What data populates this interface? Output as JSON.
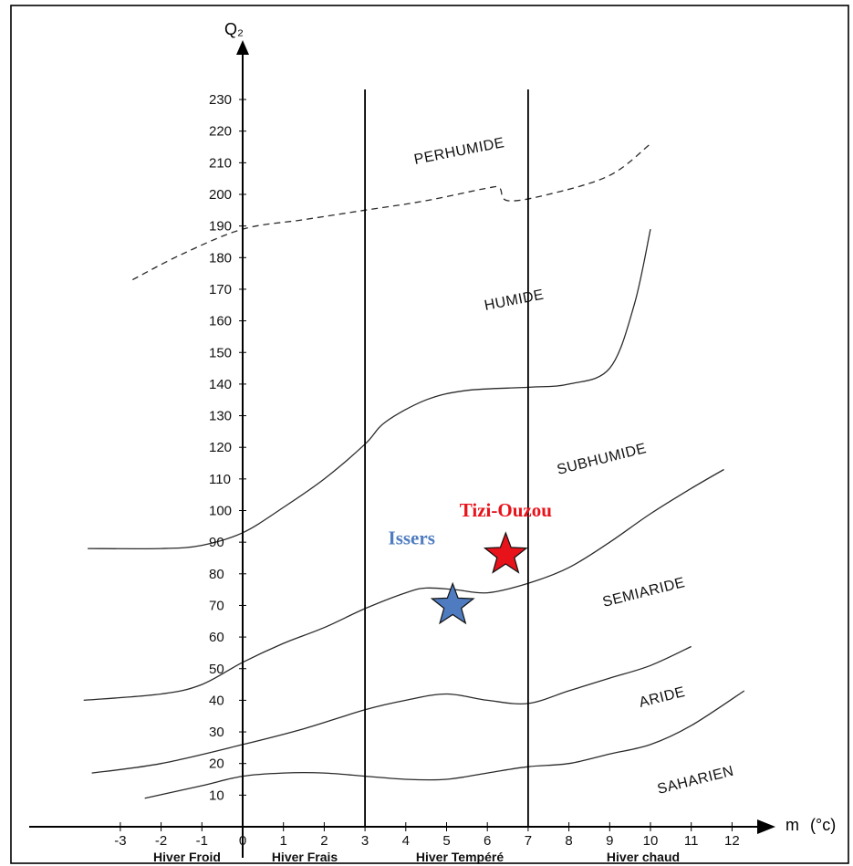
{
  "chart_data": {
    "type": "line",
    "title": "",
    "ylabel": "Q₂",
    "xlabel": "m",
    "xunit": "(°c)",
    "xlim": [
      -3.5,
      12.5
    ],
    "ylim": [
      0,
      240
    ],
    "yticks": [
      10,
      20,
      30,
      40,
      50,
      60,
      70,
      80,
      90,
      100,
      110,
      120,
      130,
      140,
      150,
      160,
      170,
      180,
      190,
      200,
      210,
      220,
      230
    ],
    "xticks": [
      -3,
      -2,
      -1,
      0,
      1,
      2,
      3,
      4,
      5,
      6,
      7,
      8,
      9,
      10,
      11,
      12
    ],
    "vertical_lines": [
      0,
      3,
      7
    ],
    "winter_labels": [
      "Hiver Froid",
      "Hiver Frais",
      "Hiver Tempéré",
      "Hiver chaud"
    ],
    "zone_labels": [
      "PERHUMIDE",
      "HUMIDE",
      "SUBHUMIDE",
      "SEMIARIDE",
      "ARIDE",
      "SAHARIEN"
    ],
    "series": [
      {
        "style": "dashed",
        "points": [
          [
            -2.7,
            173
          ],
          [
            -1.5,
            181
          ],
          [
            0,
            189
          ],
          [
            1.5,
            192
          ],
          [
            3,
            195
          ],
          [
            4.5,
            198
          ],
          [
            6,
            202
          ],
          [
            6.3,
            202
          ],
          [
            6.5,
            198
          ],
          [
            7.5,
            200
          ],
          [
            9,
            206
          ],
          [
            10,
            216
          ]
        ]
      },
      {
        "style": "solid",
        "points": [
          [
            -3.8,
            88
          ],
          [
            -2,
            88
          ],
          [
            -1,
            89
          ],
          [
            0,
            93
          ],
          [
            1,
            101
          ],
          [
            2,
            110
          ],
          [
            3,
            121
          ],
          [
            3.5,
            128
          ],
          [
            4.5,
            135
          ],
          [
            5.5,
            138
          ],
          [
            7,
            139
          ],
          [
            8,
            140
          ],
          [
            9,
            145
          ],
          [
            9.6,
            165
          ],
          [
            10,
            189
          ]
        ]
      },
      {
        "style": "solid",
        "points": [
          [
            -3.9,
            40
          ],
          [
            -2,
            42
          ],
          [
            -1,
            45
          ],
          [
            0,
            52
          ],
          [
            1,
            58
          ],
          [
            2,
            63
          ],
          [
            3,
            69
          ],
          [
            4,
            74
          ],
          [
            4.5,
            75.5
          ],
          [
            5.2,
            75
          ],
          [
            6,
            74
          ],
          [
            7,
            77
          ],
          [
            8,
            82
          ],
          [
            9,
            90
          ],
          [
            10,
            99
          ],
          [
            11,
            107
          ],
          [
            11.8,
            113
          ]
        ]
      },
      {
        "style": "solid",
        "points": [
          [
            -3.7,
            17
          ],
          [
            -2,
            20
          ],
          [
            0,
            26
          ],
          [
            1.5,
            31
          ],
          [
            3,
            37
          ],
          [
            4,
            40
          ],
          [
            5,
            42
          ],
          [
            6,
            40
          ],
          [
            7,
            39
          ],
          [
            8,
            43
          ],
          [
            9,
            47
          ],
          [
            10,
            51
          ],
          [
            11,
            57
          ]
        ]
      },
      {
        "style": "solid",
        "points": [
          [
            -2.4,
            9
          ],
          [
            -1,
            13
          ],
          [
            0,
            16
          ],
          [
            1,
            17
          ],
          [
            2,
            17
          ],
          [
            3,
            16
          ],
          [
            4,
            15
          ],
          [
            5,
            15
          ],
          [
            6,
            17
          ],
          [
            7,
            19
          ],
          [
            8,
            20
          ],
          [
            9,
            23
          ],
          [
            10,
            26
          ],
          [
            11,
            32
          ],
          [
            12.3,
            43
          ]
        ]
      }
    ],
    "points": [
      {
        "name": "Tizi-Ouzou",
        "x": 6.45,
        "y": 86,
        "color": "#e8121a"
      },
      {
        "name": "Issers",
        "x": 5.15,
        "y": 70,
        "color": "#4f7cc0"
      }
    ]
  }
}
